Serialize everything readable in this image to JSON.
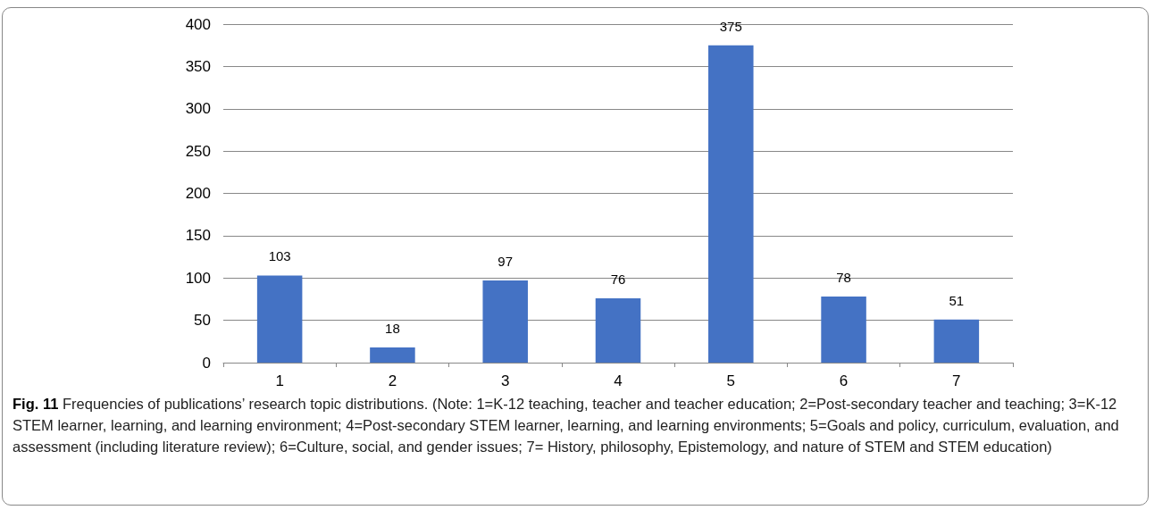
{
  "chart_data": {
    "type": "bar",
    "title": "Fig. 11",
    "subtitle": "Frequencies of publications’ research topic distributions. (Note: 1=K-12 teaching, teacher and teacher education; 2=Post-secondary teacher and teaching; 3=K-12 STEM learner, learning, and learning environment; 4=Post-secondary STEM learner, learning, and learning environments; 5=Goals and policy, curriculum, evaluation, and assessment (including literature review); 6=Culture, social, and gender issues; 7= History, philosophy, Epistemology, and nature of STEM and STEM education)",
    "categories": [
      "1",
      "2",
      "3",
      "4",
      "5",
      "6",
      "7"
    ],
    "values": [
      103,
      18,
      97,
      76,
      375,
      78,
      51
    ],
    "color": "#4472c4",
    "ylim": [
      0,
      400
    ],
    "yticks": [
      0,
      50,
      100,
      150,
      200,
      250,
      300,
      350,
      400
    ],
    "grid": "y",
    "data_labels": true
  }
}
